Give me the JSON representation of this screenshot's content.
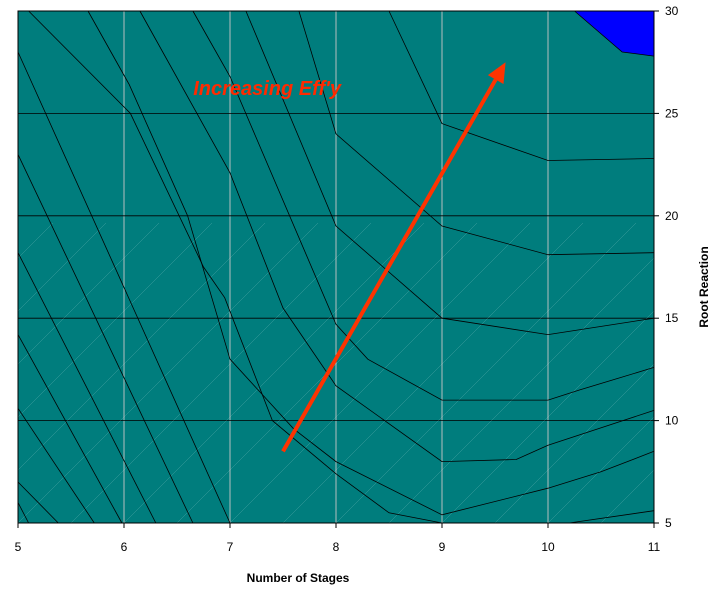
{
  "chart_data": {
    "type": "contour",
    "title": "",
    "xlabel": "Number of Stages",
    "ylabel": "Root Reaction",
    "xlim": [
      5,
      11
    ],
    "ylim": [
      5,
      30
    ],
    "x_ticks": [
      "5",
      "6",
      "7",
      "8",
      "9",
      "10",
      "11"
    ],
    "y_ticks": [
      "5",
      "10",
      "15",
      "20",
      "25",
      "30"
    ],
    "y_axis_side": "right",
    "grid": true,
    "legend": "none",
    "annotation": {
      "text": "Increasing Eff'y",
      "color": "#ff2a00"
    },
    "arrow": {
      "from": [
        7.5,
        8.5
      ],
      "to": [
        9.6,
        27.5
      ],
      "color": "#ff3300"
    },
    "band_colors": [
      "#7d5bd1",
      "#6e1e55",
      "#ffffd2",
      "#a8e0e0",
      "#5b0f6e",
      "#ff8080",
      "#0a78be",
      "#c4c6f5",
      "#000080",
      "#ff00ff",
      "#ffff00",
      "#00ffff",
      "#7d0a7d",
      "#7d0000",
      "#007d7d",
      "#0000ff"
    ],
    "contour_boundaries": [
      [
        [
          5,
          6
        ],
        [
          5.1,
          5
        ]
      ],
      [
        [
          5,
          7
        ],
        [
          5.38,
          5
        ]
      ],
      [
        [
          5,
          10.6
        ],
        [
          5.72,
          5
        ]
      ],
      [
        [
          5,
          14.2
        ],
        [
          5.98,
          5
        ]
      ],
      [
        [
          5,
          18.2
        ],
        [
          6.3,
          5
        ]
      ],
      [
        [
          5,
          23
        ],
        [
          6.65,
          5
        ]
      ],
      [
        [
          5,
          28
        ],
        [
          7,
          5
        ]
      ],
      [
        [
          5.1,
          30
        ],
        [
          6.06,
          25
        ],
        [
          6.75,
          17.5
        ],
        [
          6.95,
          16
        ],
        [
          7.4,
          10
        ],
        [
          8,
          7.4
        ],
        [
          8.5,
          5.5
        ],
        [
          9,
          5
        ],
        [
          10.2,
          5
        ],
        [
          11,
          5.6
        ]
      ],
      [
        [
          5.66,
          30
        ],
        [
          6.05,
          26.4
        ],
        [
          6.6,
          20
        ],
        [
          7,
          13
        ],
        [
          7.6,
          9.6
        ],
        [
          8,
          8
        ],
        [
          9,
          5.4
        ],
        [
          10,
          6.7
        ],
        [
          10.5,
          7.5
        ],
        [
          11,
          8.5
        ]
      ],
      [
        [
          6.15,
          30
        ],
        [
          7,
          22.1
        ],
        [
          7.5,
          15.5
        ],
        [
          8,
          11.7
        ],
        [
          9,
          8
        ],
        [
          9.7,
          8.1
        ],
        [
          10,
          8.8
        ],
        [
          11,
          10.5
        ]
      ],
      [
        [
          6.65,
          30
        ],
        [
          7,
          26.8
        ],
        [
          8,
          14.7
        ],
        [
          8.3,
          13
        ],
        [
          9,
          11
        ],
        [
          10,
          11
        ],
        [
          10.3,
          11.5
        ],
        [
          11,
          12.6
        ]
      ],
      [
        [
          7.15,
          30
        ],
        [
          8,
          19.5
        ],
        [
          9,
          15
        ],
        [
          10,
          14.2
        ],
        [
          11,
          15
        ]
      ],
      [
        [
          7.65,
          30
        ],
        [
          8,
          24
        ],
        [
          9,
          19.5
        ],
        [
          10,
          18.1
        ],
        [
          11,
          18.2
        ]
      ],
      [
        [
          8.5,
          30
        ],
        [
          9,
          24.5
        ],
        [
          10,
          22.7
        ],
        [
          11,
          22.8
        ]
      ],
      [
        [
          10.25,
          30
        ],
        [
          10.7,
          28
        ],
        [
          11,
          27.8
        ]
      ]
    ]
  }
}
